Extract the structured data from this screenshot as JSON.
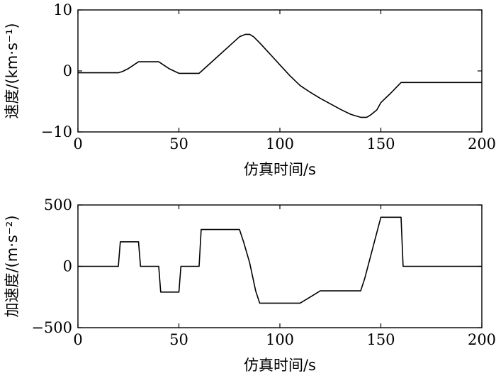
{
  "chart_data": [
    {
      "type": "line",
      "xlabel": "仿真时间/s",
      "ylabel": "速度/(km·s⁻¹)",
      "xlim": [
        0,
        200
      ],
      "ylim": [
        -10,
        10
      ],
      "xticks": [
        "0",
        "50",
        "100",
        "150",
        "200"
      ],
      "yticks": [
        "10",
        "0",
        "−10"
      ],
      "grid": false,
      "series": [
        {
          "x": [
            0,
            20,
            22,
            25,
            30,
            35,
            40,
            45,
            50,
            55,
            60,
            65,
            70,
            75,
            80,
            83,
            85,
            87,
            90,
            95,
            100,
            105,
            110,
            115,
            120,
            125,
            130,
            135,
            140,
            143,
            145,
            148,
            150,
            155,
            160,
            170,
            180,
            190,
            200
          ],
          "y": [
            -0.3,
            -0.3,
            -0.1,
            0.4,
            1.5,
            1.5,
            1.5,
            0.4,
            -0.4,
            -0.4,
            -0.4,
            1.1,
            2.6,
            4.1,
            5.6,
            6.0,
            6.0,
            5.6,
            4.6,
            2.8,
            1.0,
            -0.8,
            -2.4,
            -3.5,
            -4.5,
            -5.4,
            -6.3,
            -7.1,
            -7.6,
            -7.6,
            -7.2,
            -6.4,
            -5.2,
            -3.6,
            -1.9,
            -1.9,
            -1.9,
            -1.9,
            -1.9
          ]
        }
      ]
    },
    {
      "type": "line",
      "xlabel": "仿真时间/s",
      "ylabel": "加速度/(m·s⁻²)",
      "xlim": [
        0,
        200
      ],
      "ylim": [
        -500,
        500
      ],
      "xticks": [
        "0",
        "50",
        "100",
        "150",
        "200"
      ],
      "yticks": [
        "500",
        "0",
        "−500"
      ],
      "grid": false,
      "series": [
        {
          "x": [
            0,
            20,
            21,
            30,
            31,
            40,
            41,
            50,
            51,
            60,
            61,
            80,
            82,
            85,
            88,
            90,
            110,
            115,
            120,
            140,
            142,
            146,
            150,
            160,
            161,
            200
          ],
          "y": [
            0,
            0,
            200,
            200,
            0,
            0,
            -210,
            -210,
            0,
            0,
            300,
            300,
            200,
            30,
            -200,
            -300,
            -300,
            -250,
            -200,
            -200,
            -100,
            150,
            400,
            400,
            0,
            0
          ]
        }
      ]
    }
  ]
}
